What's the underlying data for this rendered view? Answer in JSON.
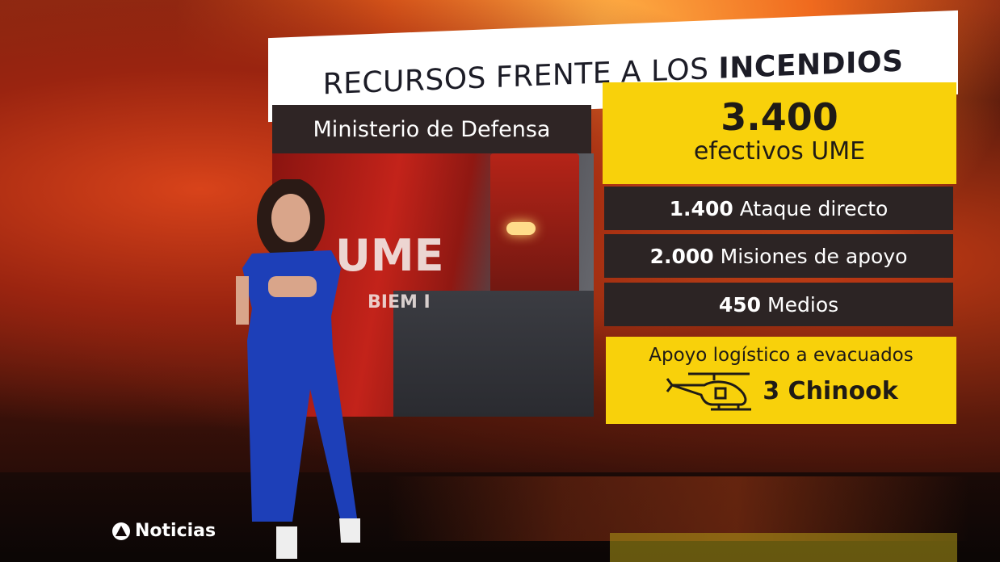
{
  "graphic": {
    "title_regular": "RECURSOS FRENTE A LOS ",
    "title_bold": "INCENDIOS",
    "source": "Ministerio de Defensa",
    "headline_number": "3.400",
    "headline_label": "efectivos UME",
    "rows": [
      {
        "number": "1.400",
        "label": "Ataque directo"
      },
      {
        "number": "2.000",
        "label": "Misiones de apoyo"
      },
      {
        "number": "450",
        "label": "Medios"
      }
    ],
    "logistics_label": "Apoyo logístico a evacuados",
    "logistics_value": "3 Chinook",
    "logistics_icon": "helicopter-icon",
    "photo_text_1": "UME",
    "photo_text_2": "BIEM I"
  },
  "channel": {
    "logo_text": "Noticias",
    "logo_icon": "antena3-logo"
  },
  "colors": {
    "yellow": "#f8d10b",
    "dark": "#2c2424",
    "suit": "#1d3fb8"
  }
}
